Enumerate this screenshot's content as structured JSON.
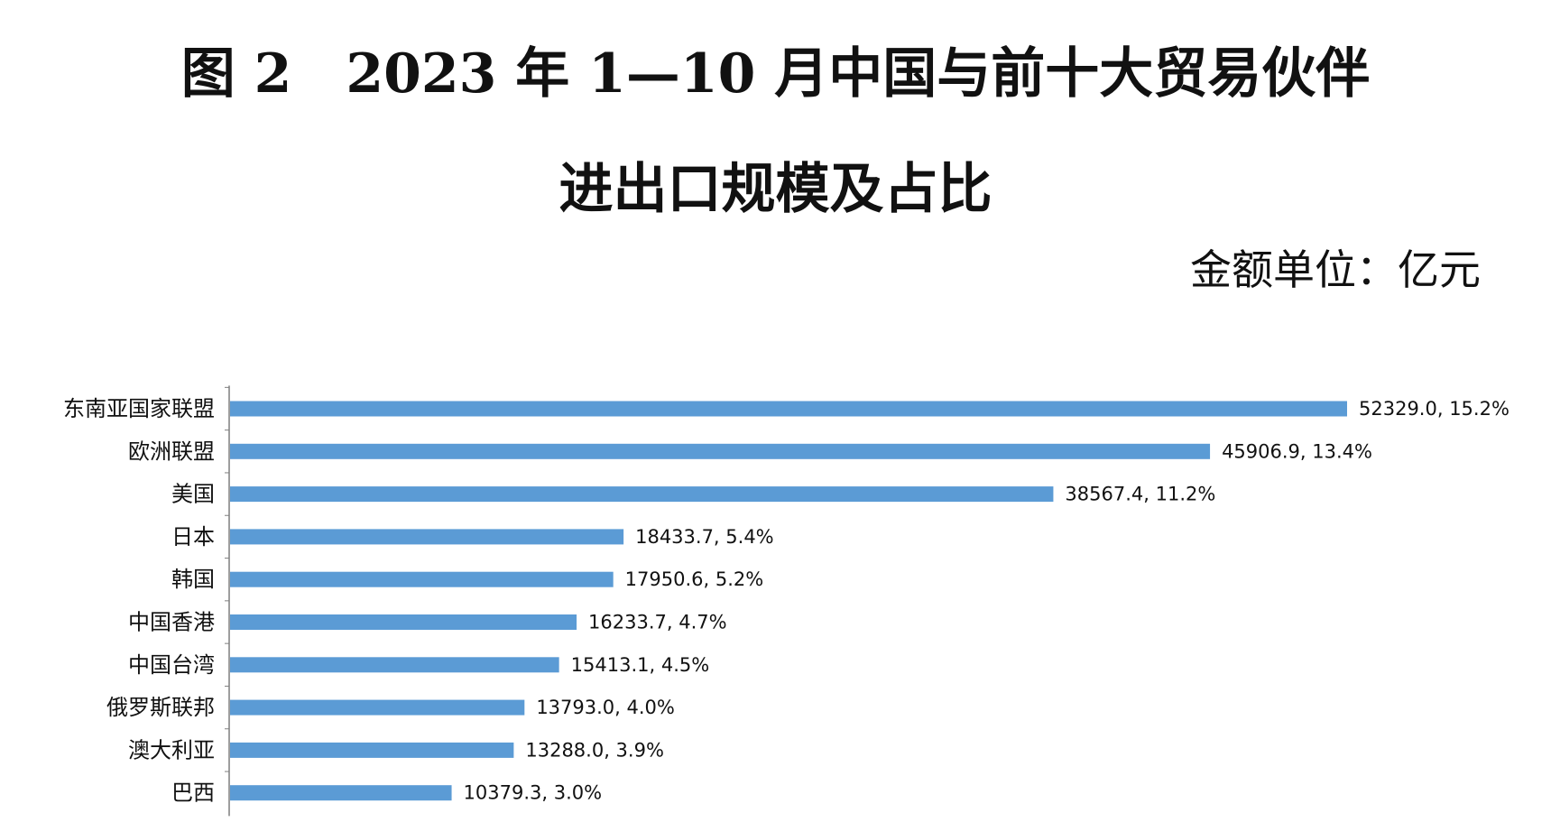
{
  "title_line1": "图 2　2023 年 1—10 月中国与前十大贸易伙伴",
  "title_line2": "进出口规模及占比",
  "unit_label": "金额单位：亿元",
  "bar_color": "#5b9bd5",
  "axis_color": "#7f7f7f",
  "chart_data": {
    "type": "bar",
    "orientation": "horizontal",
    "categories": [
      "东南亚国家联盟",
      "欧洲联盟",
      "美国",
      "日本",
      "韩国",
      "中国香港",
      "中国台湾",
      "俄罗斯联邦",
      "澳大利亚",
      "巴西"
    ],
    "values": [
      52329.0,
      45906.9,
      38567.4,
      18433.7,
      17950.6,
      16233.7,
      15413.1,
      13793.0,
      13288.0,
      10379.3
    ],
    "data_labels": [
      "52329.0, 15.2%",
      "45906.9, 13.4%",
      "38567.4, 11.2%",
      "18433.7, 5.4%",
      "17950.6, 5.2%",
      "16233.7, 4.7%",
      "15413.1, 4.5%",
      "13793.0, 4.0%",
      "13288.0, 3.9%",
      "10379.3, 3.0%"
    ],
    "shares_percent": [
      15.2,
      13.4,
      11.2,
      5.4,
      5.2,
      4.7,
      4.5,
      4.0,
      3.9,
      3.0
    ],
    "xlim": [
      0,
      52329.0
    ],
    "grid": false,
    "legend": false
  }
}
